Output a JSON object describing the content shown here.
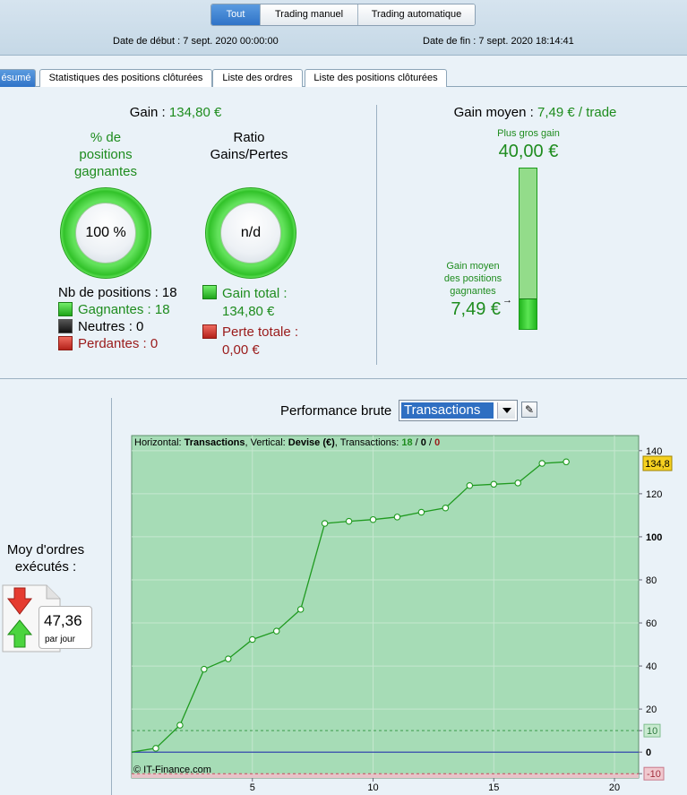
{
  "header": {
    "tabs": [
      {
        "label": "Tout",
        "active": true
      },
      {
        "label": "Trading manuel",
        "active": false
      },
      {
        "label": "Trading automatique",
        "active": false
      }
    ],
    "start_date": "Date de début : 7 sept. 2020 00:00:00",
    "end_date": "Date de fin : 7 sept. 2020 18:14:41"
  },
  "subtabs": [
    {
      "label": "ésumé",
      "active": true
    },
    {
      "label": "Statistiques des positions clôturées",
      "active": false
    },
    {
      "label": "Liste des ordres",
      "active": false
    },
    {
      "label": "Liste des positions clôturées",
      "active": false
    }
  ],
  "summary": {
    "gain_label": "Gain :",
    "gain_value": "134,80 €",
    "pct_title_l1": "% de",
    "pct_title_l2": "positions",
    "pct_title_l3": "gagnantes",
    "pct_value": "100 %",
    "ratio_title_l1": "Ratio",
    "ratio_title_l2": "Gains/Pertes",
    "ratio_value": "n/d",
    "nb_positions": "Nb de positions : 18",
    "gagnantes": "Gagnantes : 18",
    "neutres": "Neutres : 0",
    "perdantes": "Perdantes : 0",
    "gain_total_label": "Gain total :",
    "gain_total_value": "134,80 €",
    "perte_totale_label": "Perte totale :",
    "perte_totale_value": "0,00 €",
    "gain_moyen_label": "Gain moyen :",
    "gain_moyen_value": "7,49 € / trade",
    "plus_gros_gain_label": "Plus gros gain",
    "plus_gros_gain_value": "40,00 €",
    "gain_moyen_pos_l1": "Gain moyen",
    "gain_moyen_pos_l2": "des positions",
    "gain_moyen_pos_l3": "gagnantes",
    "gain_moyen_pos_value": "7,49 €",
    "bar_fill_fraction": 0.19
  },
  "orders": {
    "title_l1": "Moy d'ordres",
    "title_l2": "exécutés :",
    "value": "47,36",
    "unit": "par jour"
  },
  "performance": {
    "title": "Performance brute",
    "selector_value": "Transactions",
    "colors": {
      "area": "#a6dcb6",
      "line": "#1f9a1f",
      "zero_line": "#2233aa",
      "last_value_bg": "#f5d020"
    }
  },
  "chart_data": {
    "type": "line",
    "info": {
      "prefix_h": "Horizontal: ",
      "h_value": "Transactions",
      "prefix_v": ", Vertical: ",
      "v_value": "Devise (€)",
      "prefix_t": ", Transactions: ",
      "wins": "18",
      "sep1": " / ",
      "neutral": "0",
      "sep2": " / ",
      "losses": "0"
    },
    "x": [
      0,
      1,
      2,
      3,
      4,
      5,
      6,
      7,
      8,
      9,
      10,
      11,
      12,
      13,
      14,
      15,
      16,
      17,
      18
    ],
    "y": [
      0,
      1.8,
      12.5,
      38.5,
      43.3,
      52.3,
      56.2,
      66.3,
      106.2,
      107.2,
      108,
      109.2,
      111.4,
      113.4,
      123.8,
      124.4,
      125,
      134.1,
      134.8
    ],
    "xlim": [
      0,
      21
    ],
    "ylim": [
      -12,
      147
    ],
    "x_ticks": [
      5,
      10,
      15,
      20
    ],
    "y_ticks": [
      140,
      120,
      100,
      80,
      60,
      40,
      20,
      10,
      0,
      -10
    ],
    "y_ticks_bold": [
      100,
      0
    ],
    "ref_lines": [
      10,
      -10
    ],
    "last_value_label": "134,8",
    "watermark": "© IT-Finance.com",
    "grid": true
  }
}
